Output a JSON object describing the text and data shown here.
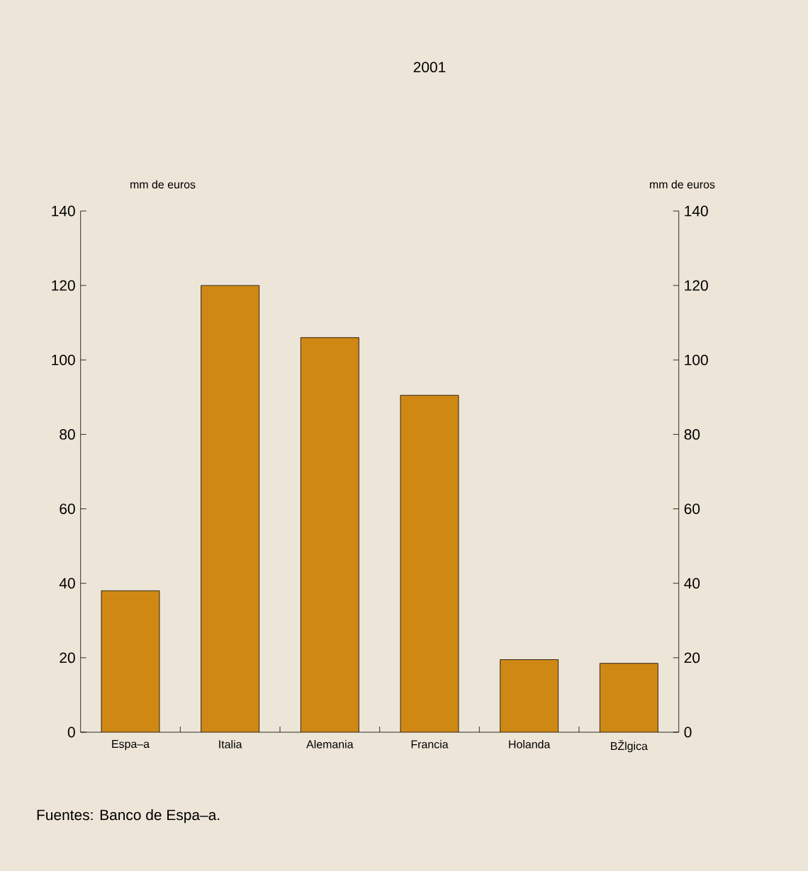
{
  "chart_data": {
    "type": "bar",
    "title": "2001",
    "categories": [
      "Espa–a",
      "Italia",
      "Alemania",
      "Francia",
      "Holanda",
      "BŽlgica"
    ],
    "values": [
      38,
      120,
      106,
      90.5,
      19.5,
      18.5
    ],
    "color": "#d08814",
    "ylim": [
      0,
      140
    ],
    "yticks": [
      0,
      20,
      40,
      60,
      80,
      100,
      120,
      140
    ],
    "y2lim": [
      0,
      140
    ],
    "y2ticks": [
      0,
      20,
      40,
      60,
      80,
      100,
      120,
      140
    ],
    "annotations": [
      "mm de euros",
      "mm de euros",
      "Fuentes: Banco de Espa–a."
    ]
  }
}
